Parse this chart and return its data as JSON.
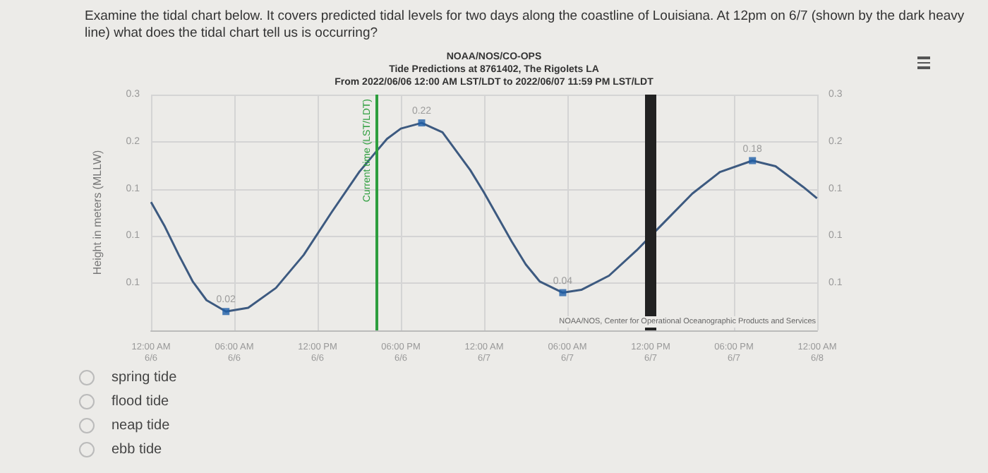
{
  "chart_data": {
    "type": "line",
    "title": "NOAA/NOS/CO-OPS",
    "subtitle": "Tide Predictions at 8761402, The Rigolets LA\nFrom 2022/06/06 12:00 AM LST/LDT to 2022/06/07 11:59 PM LST/LDT",
    "ylabel": "Height in meters (MLLW)",
    "annotations": [
      "Examine the tidal chart below. It covers predicted tidal levels for two days along the coastline of Louisiana. At 12pm on 6/7 (shown by the dark heavy line) what does the tidal chart tell us is occurring?",
      "spring tide",
      "flood tide",
      "neap tide",
      "ebb tide",
      "NOAA/NOS, Center for Operational Oceanographic Products and Services"
    ],
    "x": [
      "2022-06-06T00:00",
      "2022-06-06T01:00",
      "2022-06-06T02:00",
      "2022-06-06T03:00",
      "2022-06-06T04:00",
      "2022-06-06T05:24",
      "2022-06-06T07:00",
      "2022-06-06T09:00",
      "2022-06-06T11:00",
      "2022-06-06T13:00",
      "2022-06-06T15:00",
      "2022-06-06T16:15",
      "2022-06-06T17:00",
      "2022-06-06T18:00",
      "2022-06-06T19:30",
      "2022-06-06T21:00",
      "2022-06-06T23:00",
      "2022-06-07T00:00",
      "2022-06-07T01:00",
      "2022-06-07T02:00",
      "2022-06-07T03:00",
      "2022-06-07T04:00",
      "2022-06-07T05:40",
      "2022-06-07T07:00",
      "2022-06-07T09:00",
      "2022-06-07T11:00",
      "2022-06-07T12:00",
      "2022-06-07T13:00",
      "2022-06-07T15:00",
      "2022-06-07T17:00",
      "2022-06-07T19:20",
      "2022-06-07T21:00",
      "2022-06-07T23:00",
      "2022-06-07T23:59"
    ],
    "series": [
      {
        "color": "#3d5a80",
        "marker": "none",
        "values": [
          0.136,
          0.11,
          0.08,
          0.052,
          0.032,
          0.02,
          0.024,
          0.045,
          0.08,
          0.125,
          0.168,
          0.19,
          0.203,
          0.214,
          0.22,
          0.21,
          0.17,
          0.146,
          0.12,
          0.094,
          0.07,
          0.052,
          0.04,
          0.043,
          0.058,
          0.085,
          0.1,
          0.115,
          0.145,
          0.168,
          0.18,
          0.174,
          0.152,
          0.14
        ]
      },
      {
        "type": "scatter",
        "color": "#1f5fa8",
        "marker": "square",
        "values": [
          null,
          null,
          null,
          null,
          null,
          0.02,
          null,
          null,
          null,
          null,
          null,
          null,
          null,
          null,
          0.22,
          null,
          null,
          null,
          null,
          null,
          null,
          null,
          0.04,
          null,
          null,
          null,
          null,
          null,
          null,
          null,
          0.18,
          null,
          null,
          null
        ],
        "value_labels": [
          null,
          null,
          null,
          null,
          null,
          "0.02",
          null,
          null,
          null,
          null,
          null,
          null,
          null,
          null,
          "0.22",
          null,
          null,
          null,
          null,
          null,
          null,
          null,
          "0.04",
          null,
          null,
          null,
          null,
          null,
          null,
          null,
          "0.18",
          null,
          null,
          null
        ]
      }
    ],
    "grid": true,
    "xlim": [
      "2022-06-06T00:00",
      "2022-06-08T00:00"
    ],
    "xticks": [
      {
        "value": "2022-06-06T00:00",
        "label": "12:00 AM\n6/6"
      },
      {
        "value": "2022-06-06T06:00",
        "label": "06:00 AM\n6/6"
      },
      {
        "value": "2022-06-06T12:00",
        "label": "12:00 PM\n6/6"
      },
      {
        "value": "2022-06-06T18:00",
        "label": "06:00 PM\n6/6"
      },
      {
        "value": "2022-06-07T00:00",
        "label": "12:00 AM\n6/7"
      },
      {
        "value": "2022-06-07T06:00",
        "label": "06:00 AM\n6/7"
      },
      {
        "value": "2022-06-07T12:00",
        "label": "12:00 PM\n6/7"
      },
      {
        "value": "2022-06-07T18:00",
        "label": "06:00 PM\n6/7"
      },
      {
        "value": "2022-06-08T00:00",
        "label": "12:00 AM\n6/8"
      }
    ],
    "ylim": [
      0,
      0.25
    ],
    "yticks": [
      {
        "value": 0,
        "label": null
      },
      {
        "value": 0.05,
        "label": "0.1"
      },
      {
        "value": 0.1,
        "label": "0.1"
      },
      {
        "value": 0.15,
        "label": "0.1"
      },
      {
        "value": 0.2,
        "label": "0.2"
      },
      {
        "value": 0.25,
        "label": "0.3"
      }
    ],
    "y2lim": [
      0,
      0.25
    ],
    "y2ticks": [
      {
        "value": 0,
        "label": null
      },
      {
        "value": 0.05,
        "label": "0.1"
      },
      {
        "value": 0.1,
        "label": "0.1"
      },
      {
        "value": 0.15,
        "label": "0.1"
      },
      {
        "value": 0.2,
        "label": "0.2"
      },
      {
        "value": 0.25,
        "label": "0.3"
      }
    ],
    "ref_lines": [
      {
        "axis": "x",
        "value": "2022-06-06T16:15",
        "label": "Current time (LST/LDT)",
        "color": "#2e9e3e"
      },
      {
        "axis": "x",
        "value": "2022-06-07T12:00",
        "label": null,
        "color": "#222222"
      }
    ]
  }
}
